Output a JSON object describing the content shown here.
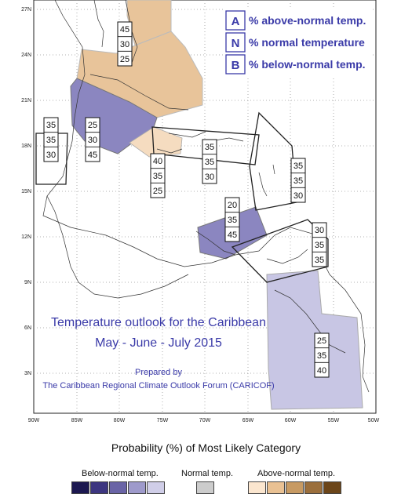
{
  "map": {
    "lat_labels": [
      "27N",
      "24N",
      "21N",
      "18N",
      "15N",
      "12N",
      "9N",
      "6N",
      "3N"
    ],
    "lon_labels": [
      "90W",
      "85W",
      "80W",
      "75W",
      "70W",
      "65W",
      "60W",
      "55W",
      "50W"
    ],
    "key": [
      {
        "letter": "A",
        "text": "% above-normal temp."
      },
      {
        "letter": "N",
        "text": "% normal temperature"
      },
      {
        "letter": "B",
        "text": "% below-normal temp."
      }
    ],
    "title_line1": "Temperature outlook for the Caribbean",
    "title_line2": "May - June - July 2015",
    "prepared_by": "Prepared by",
    "forum": "The Caribbean Regional Climate Outlook Forum (CARICOF)",
    "regions": [
      {
        "values": [
          "45",
          "30",
          "25"
        ]
      },
      {
        "values": [
          "35",
          "35",
          "30"
        ]
      },
      {
        "values": [
          "25",
          "30",
          "45"
        ]
      },
      {
        "values": [
          "40",
          "35",
          "25"
        ]
      },
      {
        "values": [
          "35",
          "35",
          "30"
        ]
      },
      {
        "values": [
          "35",
          "35",
          "30"
        ]
      },
      {
        "values": [
          "20",
          "35",
          "45"
        ]
      },
      {
        "values": [
          "30",
          "35",
          "35"
        ]
      },
      {
        "values": [
          "25",
          "35",
          "40"
        ]
      }
    ],
    "colors": {
      "above": "#e8c49a",
      "above_light": "#f5dcc0",
      "below": "#8b86c0",
      "below_light": "#c8c6e4",
      "title_blue": "#3a3aa8"
    }
  },
  "legend": {
    "title": "Probability (%) of Most Likely Category",
    "below_label": "Below-normal temp.",
    "normal_label": "Normal temp.",
    "above_label": "Above-normal temp.",
    "below_swatches": [
      "#1c1850",
      "#3d3680",
      "#6a64a6",
      "#9e9acb",
      "#d0cee8"
    ],
    "normal_swatches": [
      "#cccccc"
    ],
    "above_swatches": [
      "#fbe6cf",
      "#e9c193",
      "#c79a63",
      "#9b6f3c",
      "#6b4519"
    ]
  }
}
